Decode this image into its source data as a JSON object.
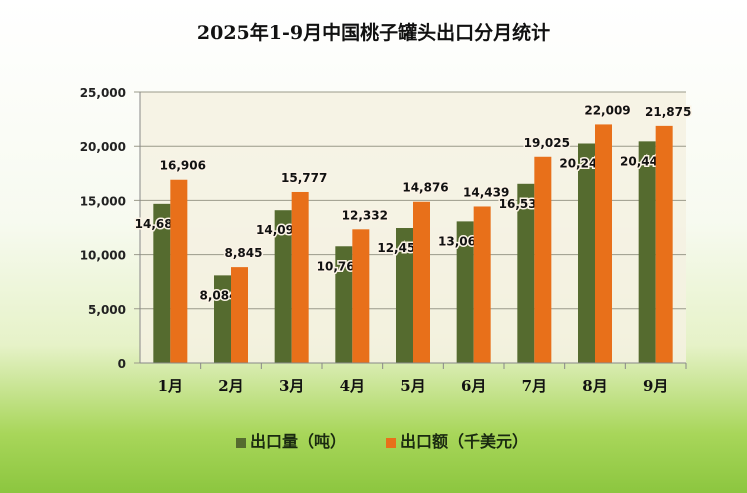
{
  "chart_data": {
    "type": "bar",
    "title": "2025年1-9月中国桃子罐头出口分月统计",
    "categories": [
      "1月",
      "2月",
      "3月",
      "4月",
      "5月",
      "6月",
      "7月",
      "8月",
      "9月"
    ],
    "series": [
      {
        "name": "出口量（吨）",
        "color": "#556b2f",
        "values": [
          14683,
          8084,
          14095,
          10768,
          12453,
          13064,
          16532,
          20249,
          20447
        ]
      },
      {
        "name": "出口额（千美元）",
        "color": "#e8701a",
        "values": [
          16906,
          8845,
          15777,
          12332,
          14876,
          14439,
          19025,
          22009,
          21875
        ]
      }
    ],
    "ylim": [
      0,
      25000
    ],
    "yticks": [
      "0",
      "5,000",
      "10,000",
      "15,000",
      "20,000",
      "25,000"
    ],
    "grid": true,
    "legend": "bottom",
    "data_labels": true
  }
}
